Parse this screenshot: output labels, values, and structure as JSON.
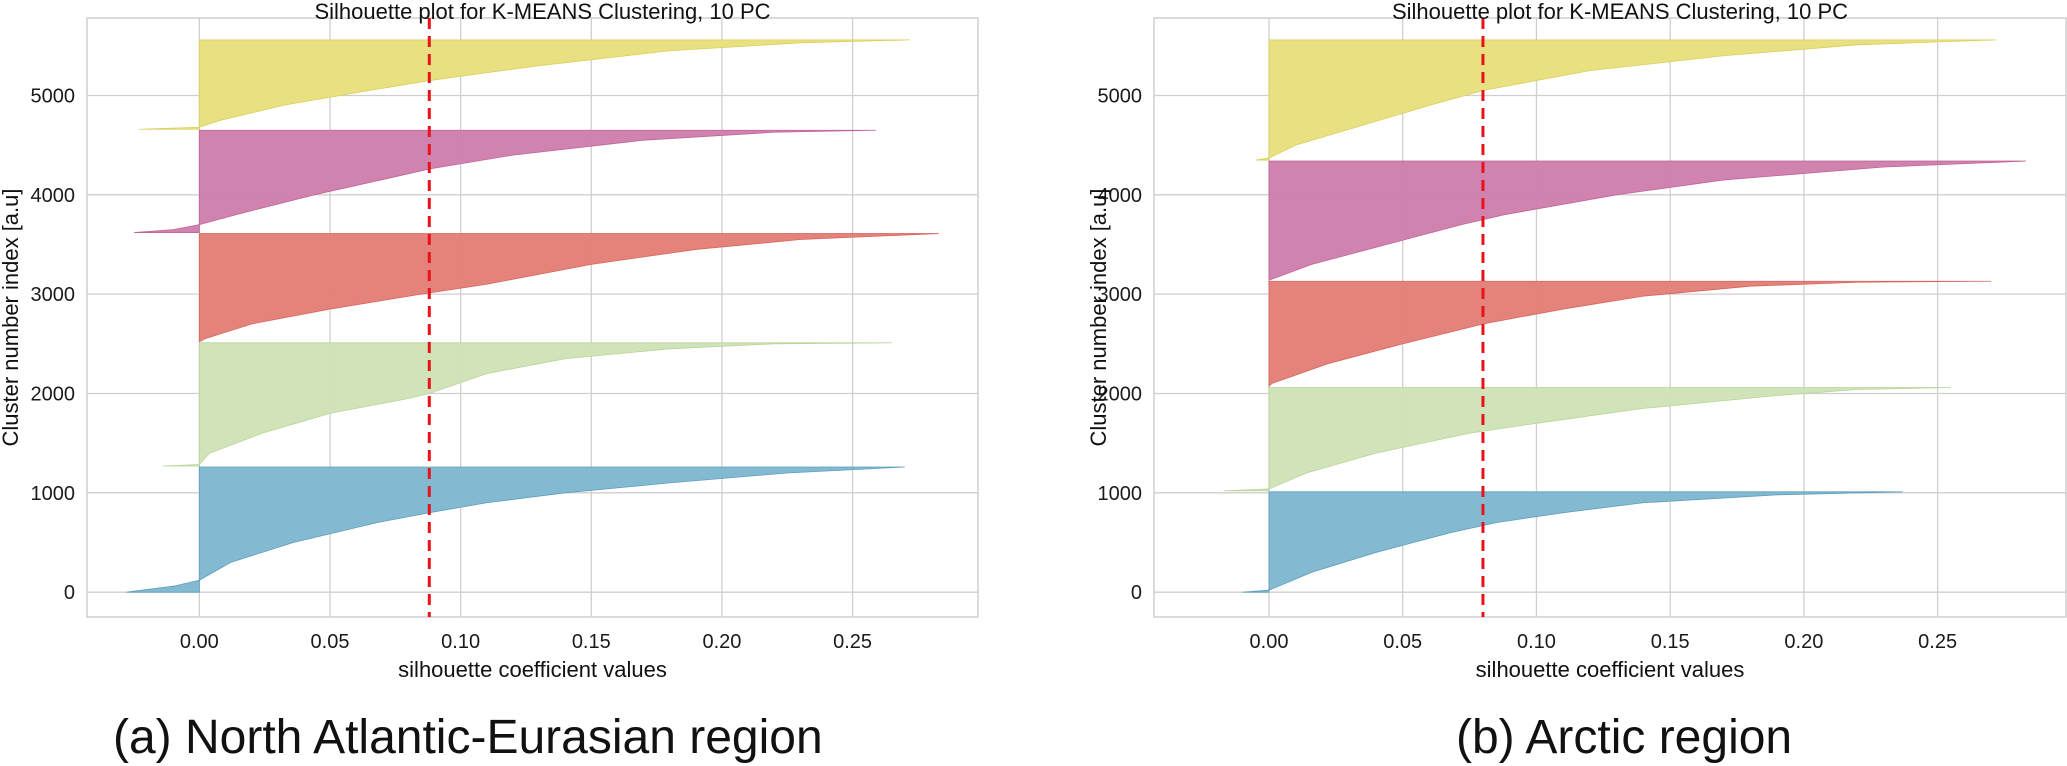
{
  "colors": {
    "cluster_palette": [
      "#7fb8d1",
      "#cfe2b6",
      "#e37f78",
      "#d07fad",
      "#e8e07d"
    ],
    "cluster_edge": [
      "#5f9fbd",
      "#b9d59a",
      "#d9665e",
      "#c0659a",
      "#d9cf5c"
    ],
    "mean_line": "#e8121b",
    "grid": "#cfcfcf",
    "frame": "#cfcfcf"
  },
  "captions": {
    "a": "(a) North Atlantic-Eurasian region",
    "b": "(b) Arctic region"
  },
  "chart_data": [
    {
      "type": "area",
      "title": "Silhouette plot for K-MEANS Clustering, 10 PC",
      "xlabel": "silhouette coefficient values",
      "ylabel": "Cluster number index [a.u]",
      "xlim": [
        -0.043,
        0.298
      ],
      "ylim": [
        -250,
        5780
      ],
      "xticks": [
        0.0,
        0.05,
        0.1,
        0.15,
        0.2,
        0.25
      ],
      "xtick_labels": [
        "0.00",
        "0.05",
        "0.10",
        "0.15",
        "0.20",
        "0.25"
      ],
      "yticks": [
        0,
        1000,
        2000,
        3000,
        4000,
        5000
      ],
      "ytick_labels": [
        "0",
        "1000",
        "2000",
        "3000",
        "4000",
        "5000"
      ],
      "grid": true,
      "mean_silhouette": 0.088,
      "clusters": [
        {
          "y_lower": 0,
          "y_upper": 1260,
          "min": -0.028,
          "max": 0.27,
          "profile": [
            [
              0,
              -0.028
            ],
            [
              60,
              -0.01
            ],
            [
              120,
              0.0
            ],
            [
              300,
              0.012
            ],
            [
              500,
              0.036
            ],
            [
              700,
              0.068
            ],
            [
              800,
              0.088
            ],
            [
              900,
              0.11
            ],
            [
              1000,
              0.14
            ],
            [
              1100,
              0.18
            ],
            [
              1200,
              0.225
            ],
            [
              1260,
              0.27
            ]
          ]
        },
        {
          "y_lower": 1270,
          "y_upper": 2510,
          "min": -0.014,
          "max": 0.265,
          "profile": [
            [
              1270,
              -0.014
            ],
            [
              1285,
              0.0
            ],
            [
              1400,
              0.004
            ],
            [
              1600,
              0.024
            ],
            [
              1800,
              0.05
            ],
            [
              1950,
              0.08
            ],
            [
              2000,
              0.088
            ],
            [
              2200,
              0.11
            ],
            [
              2350,
              0.14
            ],
            [
              2450,
              0.18
            ],
            [
              2500,
              0.22
            ],
            [
              2510,
              0.265
            ]
          ]
        },
        {
          "y_lower": 2520,
          "y_upper": 3610,
          "min": 0.0,
          "max": 0.283,
          "profile": [
            [
              2520,
              0.0
            ],
            [
              2550,
              0.002
            ],
            [
              2700,
              0.02
            ],
            [
              2850,
              0.05
            ],
            [
              3000,
              0.085
            ],
            [
              3100,
              0.11
            ],
            [
              3300,
              0.15
            ],
            [
              3450,
              0.19
            ],
            [
              3550,
              0.23
            ],
            [
              3610,
              0.283
            ]
          ]
        },
        {
          "y_lower": 3620,
          "y_upper": 4650,
          "min": -0.025,
          "max": 0.259,
          "profile": [
            [
              3620,
              -0.025
            ],
            [
              3650,
              -0.01
            ],
            [
              3700,
              0.0
            ],
            [
              3800,
              0.014
            ],
            [
              4000,
              0.044
            ],
            [
              4200,
              0.078
            ],
            [
              4260,
              0.088
            ],
            [
              4400,
              0.12
            ],
            [
              4550,
              0.17
            ],
            [
              4630,
              0.22
            ],
            [
              4650,
              0.259
            ]
          ]
        },
        {
          "y_lower": 4660,
          "y_upper": 5560,
          "min": -0.023,
          "max": 0.272,
          "profile": [
            [
              4660,
              -0.023
            ],
            [
              4680,
              0.0
            ],
            [
              4750,
              0.008
            ],
            [
              4900,
              0.032
            ],
            [
              5050,
              0.065
            ],
            [
              5150,
              0.088
            ],
            [
              5300,
              0.13
            ],
            [
              5450,
              0.18
            ],
            [
              5530,
              0.23
            ],
            [
              5560,
              0.272
            ]
          ]
        }
      ]
    },
    {
      "type": "area",
      "title": "Silhouette plot for K-MEANS Clustering, 10 PC",
      "xlabel": "silhouette coefficient values",
      "ylabel": "Cluster number index [a.u]",
      "xlim": [
        -0.043,
        0.298
      ],
      "ylim": [
        -250,
        5780
      ],
      "xticks": [
        0.0,
        0.05,
        0.1,
        0.15,
        0.2,
        0.25
      ],
      "xtick_labels": [
        "0.00",
        "0.05",
        "0.10",
        "0.15",
        "0.20",
        "0.25"
      ],
      "yticks": [
        0,
        1000,
        2000,
        3000,
        4000,
        5000
      ],
      "ytick_labels": [
        "0",
        "1000",
        "2000",
        "3000",
        "4000",
        "5000"
      ],
      "grid": true,
      "mean_silhouette": 0.08,
      "clusters": [
        {
          "y_lower": 0,
          "y_upper": 1010,
          "min": -0.01,
          "max": 0.237,
          "profile": [
            [
              0,
              -0.01
            ],
            [
              20,
              0.0
            ],
            [
              200,
              0.016
            ],
            [
              400,
              0.04
            ],
            [
              600,
              0.068
            ],
            [
              700,
              0.085
            ],
            [
              800,
              0.11
            ],
            [
              900,
              0.14
            ],
            [
              980,
              0.19
            ],
            [
              1010,
              0.237
            ]
          ]
        },
        {
          "y_lower": 1020,
          "y_upper": 2060,
          "min": -0.017,
          "max": 0.255,
          "profile": [
            [
              1020,
              -0.017
            ],
            [
              1040,
              0.0
            ],
            [
              1200,
              0.014
            ],
            [
              1400,
              0.04
            ],
            [
              1600,
              0.075
            ],
            [
              1700,
              0.1
            ],
            [
              1850,
              0.14
            ],
            [
              1980,
              0.19
            ],
            [
              2040,
              0.22
            ],
            [
              2060,
              0.255
            ]
          ]
        },
        {
          "y_lower": 2070,
          "y_upper": 3130,
          "min": 0.0,
          "max": 0.27,
          "profile": [
            [
              2070,
              0.0
            ],
            [
              2100,
              0.001
            ],
            [
              2300,
              0.022
            ],
            [
              2500,
              0.05
            ],
            [
              2700,
              0.08
            ],
            [
              2850,
              0.11
            ],
            [
              2980,
              0.14
            ],
            [
              3080,
              0.18
            ],
            [
              3120,
              0.22
            ],
            [
              3130,
              0.27
            ]
          ]
        },
        {
          "y_lower": 3140,
          "y_upper": 4340,
          "min": 0.0,
          "max": 0.283,
          "profile": [
            [
              3140,
              0.0
            ],
            [
              3160,
              0.002
            ],
            [
              3300,
              0.016
            ],
            [
              3500,
              0.044
            ],
            [
              3700,
              0.072
            ],
            [
              3800,
              0.088
            ],
            [
              4000,
              0.13
            ],
            [
              4150,
              0.17
            ],
            [
              4280,
              0.23
            ],
            [
              4340,
              0.283
            ]
          ]
        },
        {
          "y_lower": 4350,
          "y_upper": 5560,
          "min": -0.005,
          "max": 0.272,
          "profile": [
            [
              4350,
              -0.005
            ],
            [
              4370,
              0.0
            ],
            [
              4500,
              0.01
            ],
            [
              4700,
              0.035
            ],
            [
              4900,
              0.06
            ],
            [
              5050,
              0.08
            ],
            [
              5250,
              0.12
            ],
            [
              5400,
              0.17
            ],
            [
              5510,
              0.22
            ],
            [
              5560,
              0.272
            ]
          ]
        }
      ]
    }
  ]
}
